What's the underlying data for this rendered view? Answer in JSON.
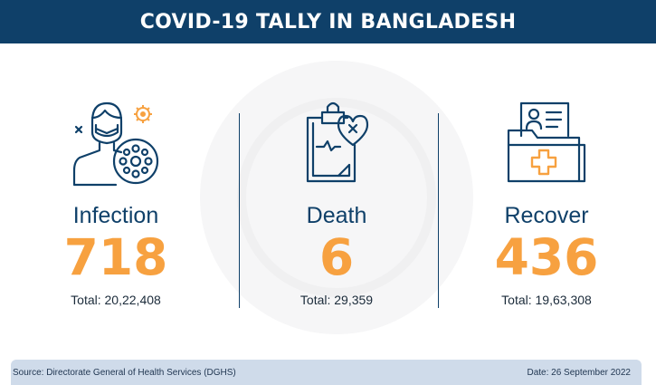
{
  "header": {
    "title": "COVID-19 TALLY IN BANGLADESH"
  },
  "stats": [
    {
      "label": "Infection",
      "value": "718",
      "total": "Total: 20,22,408",
      "icon": "infected-person-icon"
    },
    {
      "label": "Death",
      "value": "6",
      "total": "Total: 29,359",
      "icon": "clipboard-heart-icon"
    },
    {
      "label": "Recover",
      "value": "436",
      "total": "Total: 19,63,308",
      "icon": "medical-folder-icon"
    }
  ],
  "footer": {
    "source": "Source: Directorate General of Health Services (DGHS)",
    "date": "Date: 26 September 2022"
  },
  "colors": {
    "header_bg": "#0f4069",
    "accent": "#f7a140",
    "text_dark": "#0f4069",
    "footer_bg": "#cfdbea"
  }
}
